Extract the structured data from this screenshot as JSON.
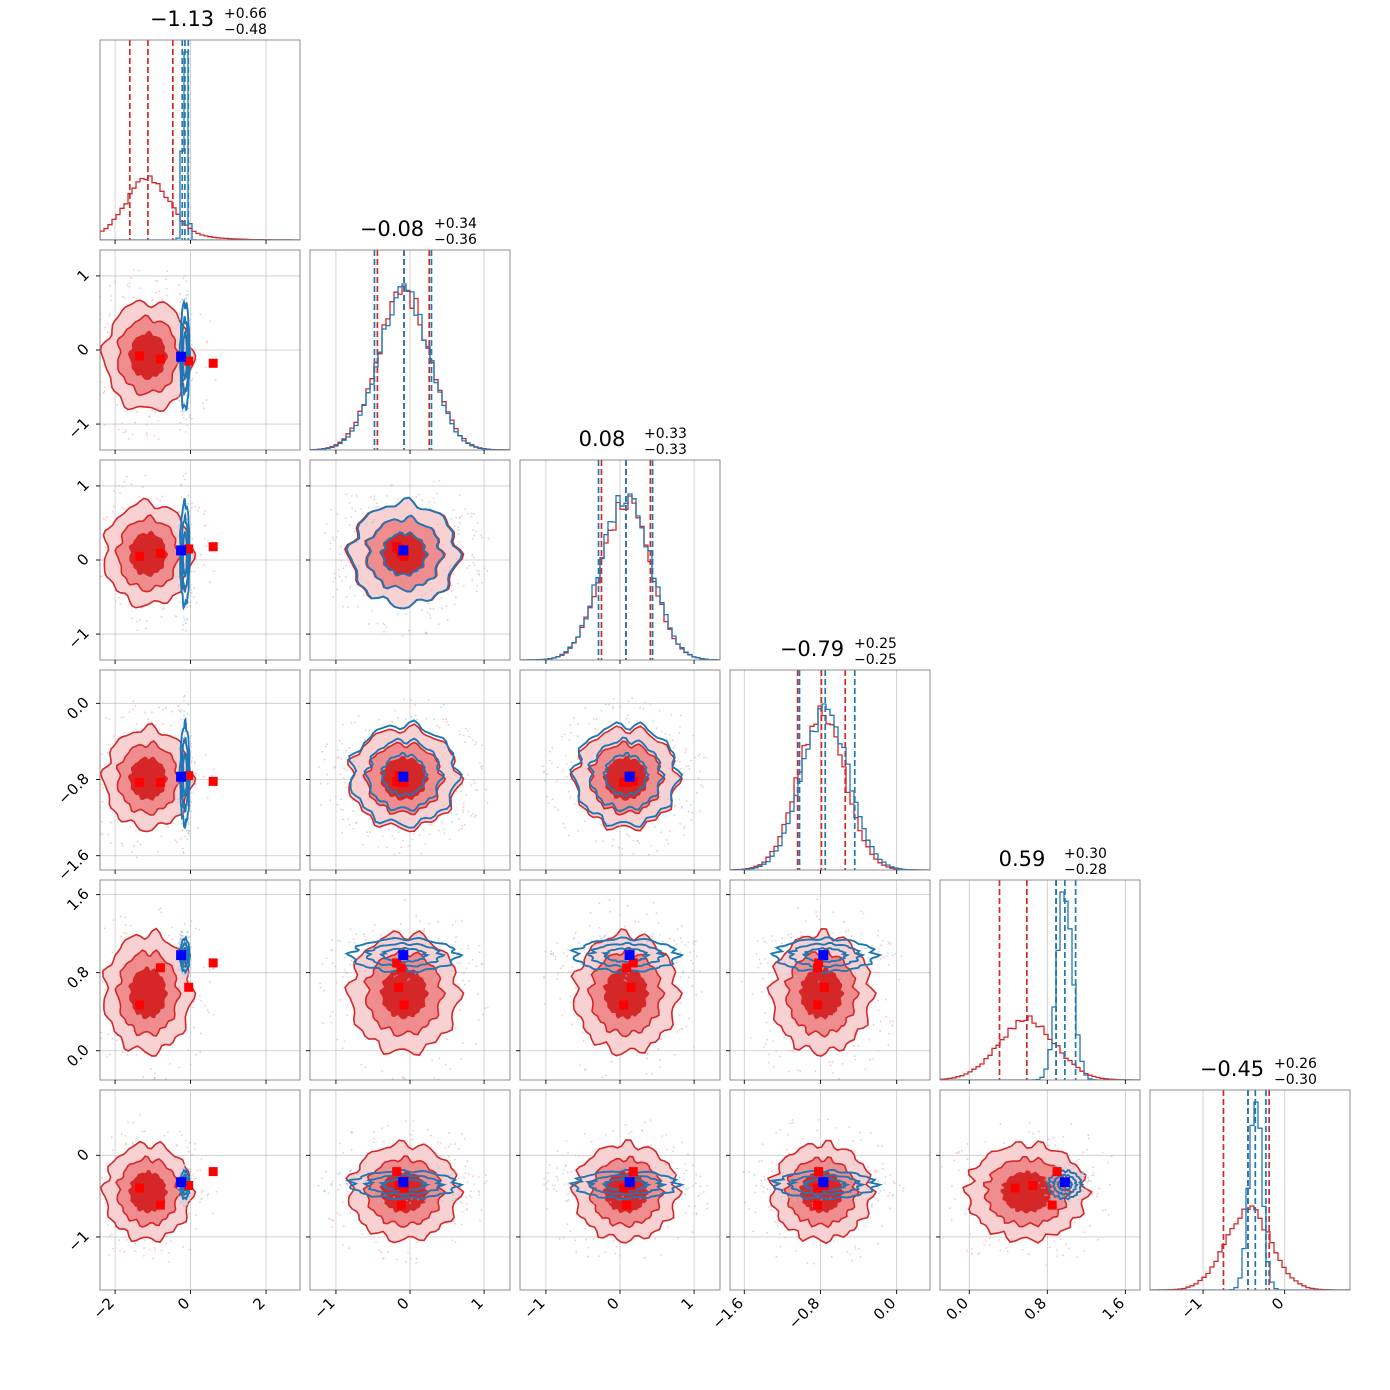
{
  "chart_data": {
    "type": "corner",
    "parameters": 6,
    "grid": true,
    "colors": {
      "series_a": "#d62728",
      "series_b": "#1f77b4",
      "truth_a": "#ff0000",
      "truth_b": "#0000ff"
    },
    "ranges": [
      [
        -2.4,
        2.9
      ],
      [
        -1.35,
        1.35
      ],
      [
        -1.35,
        1.35
      ],
      [
        -1.75,
        0.35
      ],
      [
        -0.3,
        1.75
      ],
      [
        -1.65,
        0.8
      ]
    ],
    "ticks": [
      {
        "values": [
          -2,
          0,
          2
        ],
        "labels": [
          "−2",
          "0",
          "2"
        ]
      },
      {
        "values": [
          -1,
          0,
          1
        ],
        "labels": [
          "−1",
          "0",
          "1"
        ]
      },
      {
        "values": [
          -1,
          0,
          1
        ],
        "labels": [
          "−1",
          "0",
          "1"
        ]
      },
      {
        "values": [
          -1.6,
          -0.8,
          0.0
        ],
        "labels": [
          "−1.6",
          "−0.8",
          "0.0"
        ]
      },
      {
        "values": [
          0.0,
          0.8,
          1.6
        ],
        "labels": [
          "0.0",
          "0.8",
          "1.6"
        ]
      },
      {
        "values": [
          -1,
          0
        ],
        "labels": [
          "−1",
          "0"
        ]
      }
    ],
    "titles": [
      {
        "main": "−1.13",
        "plus": "+0.66",
        "minus": "−0.48"
      },
      {
        "main": "−0.08",
        "plus": "+0.34",
        "minus": "−0.36"
      },
      {
        "main": "0.08",
        "plus": "+0.33",
        "minus": "−0.33"
      },
      {
        "main": "−0.79",
        "plus": "+0.25",
        "minus": "−0.25"
      },
      {
        "main": "0.59",
        "plus": "+0.30",
        "minus": "−0.28"
      },
      {
        "main": "−0.45",
        "plus": "+0.26",
        "minus": "−0.30"
      }
    ],
    "series": [
      {
        "color": "#d62728",
        "filled": true,
        "means": [
          -1.13,
          -0.08,
          0.08,
          -0.79,
          0.59,
          -0.45
        ],
        "stds": [
          0.55,
          0.35,
          0.33,
          0.25,
          0.29,
          0.28
        ],
        "quantiles": [
          [
            -1.61,
            -0.47
          ],
          [
            -0.44,
            0.26
          ],
          [
            -0.25,
            0.41
          ],
          [
            -1.04,
            -0.54
          ],
          [
            0.31,
            0.89
          ],
          [
            -0.75,
            -0.19
          ]
        ]
      },
      {
        "color": "#1f77b4",
        "filled": false,
        "means": [
          -0.15,
          -0.08,
          0.08,
          -0.75,
          0.98,
          -0.36
        ],
        "stds": [
          0.06,
          0.34,
          0.33,
          0.25,
          0.08,
          0.08
        ],
        "quantiles": [
          [
            -0.22,
            -0.06
          ],
          [
            -0.48,
            0.29
          ],
          [
            -0.29,
            0.44
          ],
          [
            -1.02,
            -0.44
          ],
          [
            0.89,
            1.09
          ],
          [
            -0.45,
            -0.23
          ]
        ]
      }
    ],
    "truth_markers_a": [
      [
        -1.35,
        -0.08,
        0.05,
        -0.83,
        0.47,
        -0.4
      ],
      [
        -0.8,
        -0.12,
        0.09,
        -0.83,
        0.85,
        -0.61
      ],
      [
        -0.05,
        -0.15,
        0.15,
        -0.76,
        0.65,
        -0.37
      ],
      [
        0.6,
        -0.18,
        0.18,
        -0.82,
        0.9,
        -0.2
      ]
    ],
    "truth_markers_b": [
      [
        -0.25,
        -0.09,
        0.13,
        -0.77,
        0.98,
        -0.33
      ]
    ]
  }
}
